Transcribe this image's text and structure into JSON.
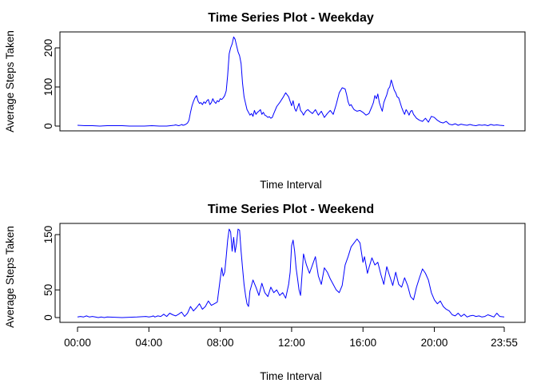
{
  "chart_data": [
    {
      "type": "line",
      "title": "Time Series Plot - Weekday",
      "xlabel": "Time Interval",
      "ylabel": "Average Steps Taken",
      "xlim": [
        0,
        1435
      ],
      "ylim": [
        0,
        230
      ],
      "yticks": [
        0,
        100,
        200
      ],
      "xticks": [],
      "grid": false,
      "series": [
        {
          "color": "#0000ff",
          "x": [
            0,
            25,
            50,
            75,
            100,
            125,
            150,
            175,
            200,
            225,
            250,
            275,
            300,
            325,
            330,
            340,
            345,
            350,
            355,
            360,
            365,
            370,
            375,
            380,
            385,
            390,
            395,
            400,
            405,
            410,
            415,
            420,
            425,
            430,
            435,
            440,
            445,
            450,
            455,
            460,
            465,
            470,
            475,
            480,
            485,
            490,
            495,
            500,
            505,
            510,
            515,
            520,
            525,
            530,
            535,
            540,
            545,
            550,
            555,
            560,
            565,
            570,
            575,
            580,
            585,
            590,
            595,
            600,
            605,
            610,
            615,
            620,
            625,
            630,
            635,
            640,
            645,
            650,
            655,
            660,
            670,
            680,
            690,
            700,
            710,
            720,
            725,
            730,
            735,
            740,
            745,
            750,
            755,
            760,
            765,
            770,
            775,
            780,
            790,
            800,
            810,
            820,
            830,
            840,
            850,
            860,
            870,
            880,
            890,
            900,
            905,
            910,
            915,
            920,
            925,
            930,
            940,
            950,
            960,
            970,
            980,
            990,
            995,
            1000,
            1005,
            1010,
            1015,
            1020,
            1025,
            1030,
            1035,
            1040,
            1045,
            1050,
            1055,
            1060,
            1065,
            1070,
            1075,
            1080,
            1085,
            1090,
            1095,
            1100,
            1105,
            1110,
            1115,
            1120,
            1125,
            1130,
            1135,
            1140,
            1150,
            1160,
            1170,
            1180,
            1190,
            1200,
            1210,
            1220,
            1230,
            1240,
            1250,
            1260,
            1270,
            1280,
            1290,
            1300,
            1310,
            1320,
            1330,
            1340,
            1350,
            1360,
            1370,
            1380,
            1390,
            1400,
            1410,
            1420,
            1435
          ],
          "y": [
            2,
            1,
            1,
            0,
            1,
            1,
            1,
            0,
            0,
            0,
            1,
            0,
            0,
            2,
            3,
            1,
            2,
            4,
            2,
            3,
            5,
            8,
            15,
            35,
            52,
            63,
            72,
            78,
            65,
            58,
            60,
            55,
            62,
            58,
            65,
            68,
            55,
            60,
            70,
            62,
            58,
            65,
            62,
            70,
            68,
            72,
            78,
            90,
            130,
            185,
            200,
            210,
            228,
            222,
            205,
            190,
            180,
            160,
            110,
            75,
            58,
            42,
            35,
            28,
            32,
            25,
            40,
            30,
            35,
            38,
            42,
            30,
            35,
            28,
            26,
            22,
            24,
            20,
            22,
            32,
            50,
            60,
            72,
            85,
            75,
            52,
            65,
            45,
            38,
            48,
            58,
            40,
            35,
            28,
            35,
            40,
            42,
            38,
            32,
            42,
            28,
            38,
            22,
            32,
            40,
            30,
            55,
            85,
            98,
            95,
            80,
            62,
            52,
            55,
            48,
            42,
            38,
            40,
            35,
            28,
            32,
            50,
            60,
            78,
            70,
            82,
            60,
            48,
            38,
            60,
            70,
            80,
            95,
            100,
            118,
            105,
            92,
            85,
            75,
            72,
            60,
            48,
            38,
            30,
            42,
            36,
            28,
            38,
            40,
            30,
            25,
            20,
            15,
            12,
            20,
            10,
            25,
            22,
            15,
            10,
            8,
            12,
            5,
            3,
            6,
            2,
            5,
            3,
            2,
            4,
            2,
            1,
            3,
            2,
            3,
            1,
            4,
            2,
            3,
            2,
            1
          ],
          "name": ""
        }
      ]
    },
    {
      "type": "line",
      "title": "Time Series Plot - Weekend",
      "xlabel": "Time Interval",
      "ylabel": "Average Steps Taken",
      "xlim": [
        0,
        1435
      ],
      "ylim": [
        0,
        166
      ],
      "yticks": [
        0,
        50,
        150
      ],
      "xticks": [
        0,
        240,
        480,
        720,
        960,
        1200,
        1435
      ],
      "xtick_labels": [
        "00:00",
        "04:00",
        "08:00",
        "12:00",
        "16:00",
        "20:00",
        "23:55"
      ],
      "grid": false,
      "series": [
        {
          "color": "#0000ff",
          "x": [
            0,
            10,
            20,
            30,
            40,
            50,
            60,
            70,
            80,
            90,
            100,
            150,
            200,
            230,
            240,
            250,
            255,
            260,
            270,
            280,
            290,
            300,
            310,
            320,
            330,
            340,
            350,
            360,
            370,
            380,
            390,
            400,
            410,
            420,
            430,
            440,
            450,
            460,
            470,
            480,
            485,
            490,
            495,
            500,
            505,
            510,
            515,
            520,
            525,
            530,
            535,
            540,
            545,
            550,
            555,
            560,
            565,
            570,
            575,
            580,
            590,
            600,
            610,
            620,
            630,
            640,
            650,
            660,
            670,
            680,
            690,
            700,
            710,
            715,
            720,
            725,
            730,
            735,
            740,
            745,
            750,
            760,
            770,
            780,
            790,
            800,
            810,
            820,
            830,
            840,
            850,
            860,
            870,
            880,
            890,
            900,
            910,
            920,
            930,
            940,
            950,
            960,
            965,
            970,
            975,
            980,
            990,
            1000,
            1010,
            1020,
            1030,
            1040,
            1050,
            1060,
            1070,
            1080,
            1090,
            1100,
            1110,
            1120,
            1130,
            1140,
            1150,
            1160,
            1170,
            1180,
            1190,
            1200,
            1210,
            1220,
            1230,
            1240,
            1250,
            1260,
            1270,
            1280,
            1290,
            1300,
            1310,
            1320,
            1330,
            1340,
            1350,
            1360,
            1370,
            1380,
            1390,
            1400,
            1410,
            1420,
            1435
          ],
          "y": [
            1,
            2,
            1,
            3,
            1,
            2,
            1,
            0,
            1,
            0,
            1,
            0,
            1,
            2,
            1,
            2,
            3,
            1,
            3,
            2,
            6,
            2,
            8,
            5,
            3,
            6,
            10,
            2,
            8,
            20,
            12,
            18,
            25,
            15,
            20,
            30,
            22,
            25,
            28,
            70,
            90,
            75,
            82,
            110,
            140,
            160,
            155,
            120,
            145,
            118,
            135,
            160,
            158,
            120,
            90,
            60,
            40,
            25,
            20,
            48,
            68,
            55,
            40,
            62,
            45,
            38,
            55,
            45,
            50,
            40,
            45,
            35,
            60,
            82,
            130,
            140,
            120,
            90,
            70,
            50,
            40,
            115,
            95,
            80,
            95,
            110,
            75,
            60,
            90,
            82,
            70,
            60,
            50,
            45,
            58,
            95,
            110,
            128,
            135,
            142,
            135,
            100,
            110,
            95,
            80,
            90,
            108,
            95,
            100,
            78,
            60,
            92,
            75,
            58,
            82,
            60,
            55,
            72,
            58,
            38,
            32,
            55,
            72,
            88,
            80,
            68,
            45,
            32,
            25,
            30,
            20,
            15,
            12,
            5,
            3,
            8,
            2,
            6,
            1,
            3,
            4,
            2,
            3,
            1,
            2,
            5,
            3,
            1,
            8,
            2,
            1
          ],
          "name": ""
        }
      ]
    }
  ]
}
